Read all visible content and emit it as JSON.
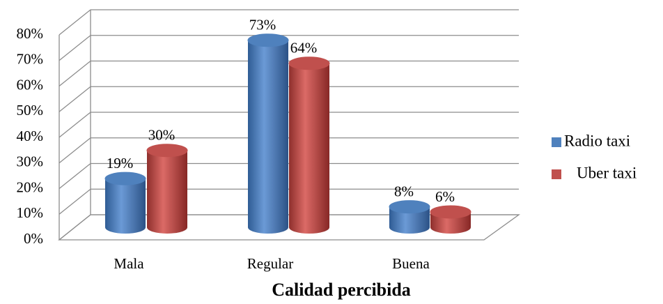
{
  "chart_data": {
    "type": "bar3d",
    "categories": [
      "Mala",
      "Regular",
      "Buena"
    ],
    "series": [
      {
        "name": "Radio taxi",
        "color": "#4f81bd",
        "values": [
          19,
          73,
          8
        ],
        "value_labels": [
          "19%",
          "73%",
          "8%"
        ]
      },
      {
        "name": "Uber taxi",
        "color": "#c0504d",
        "values": [
          30,
          64,
          6
        ],
        "value_labels": [
          "30%",
          "64%",
          "6%"
        ]
      }
    ],
    "x_label": "Calidad percibida",
    "ylim": [
      0,
      80
    ],
    "yticks": [
      {
        "value": 0,
        "label": "0%"
      },
      {
        "value": 10,
        "label": "10%"
      },
      {
        "value": 20,
        "label": "20%"
      },
      {
        "value": 30,
        "label": "30%"
      },
      {
        "value": 40,
        "label": "40%"
      },
      {
        "value": 50,
        "label": "50%"
      },
      {
        "value": 60,
        "label": "60%"
      },
      {
        "value": 70,
        "label": "70%"
      },
      {
        "value": 80,
        "label": "80%"
      }
    ],
    "grid": true,
    "legend": "right"
  }
}
